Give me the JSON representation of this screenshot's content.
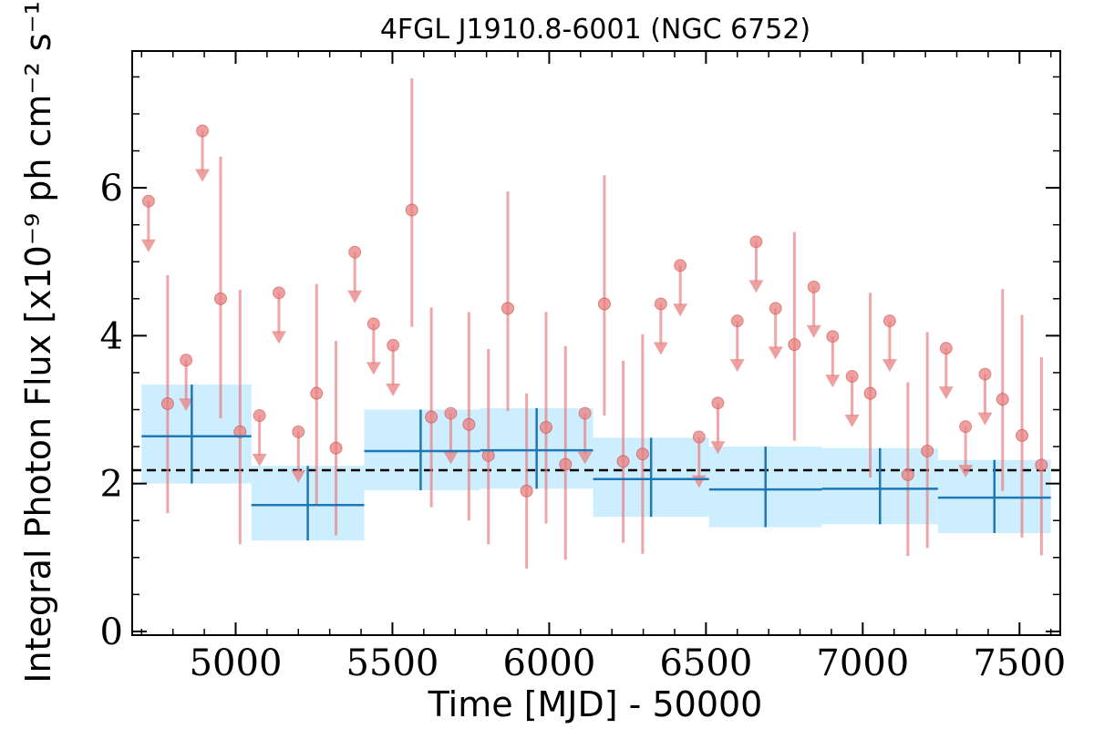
{
  "chart_data": {
    "type": "scatter",
    "title": "4FGL J1910.8-6001 (NGC 6752)",
    "xlabel": "Time [MJD] - 50000",
    "ylabel": "Integral Photon Flux [x10⁻⁹ ph cm⁻² s⁻¹]",
    "xlim": [
      4670,
      7630
    ],
    "ylim": [
      -0.05,
      7.85
    ],
    "xticks": [
      5000,
      5500,
      6000,
      6500,
      7000,
      7500
    ],
    "yticks": [
      0,
      2,
      4,
      6
    ],
    "grid": false,
    "reference_line": 2.18,
    "colors": {
      "points": "#e88080",
      "points_edge": "#cc4444",
      "bins": "#1f77b4",
      "band": "#cdeeff",
      "reference": "#000000"
    },
    "detections": [
      {
        "x": 4783,
        "y": 3.08,
        "ylo": 1.6,
        "yhi": 4.82
      },
      {
        "x": 4952,
        "y": 4.5,
        "ylo": 2.88,
        "yhi": 6.42
      },
      {
        "x": 5014,
        "y": 2.7,
        "ylo": 1.18,
        "yhi": 4.62
      },
      {
        "x": 5258,
        "y": 3.22,
        "ylo": 1.72,
        "yhi": 4.7
      },
      {
        "x": 5320,
        "y": 2.48,
        "ylo": 1.3,
        "yhi": 3.93
      },
      {
        "x": 5562,
        "y": 5.7,
        "ylo": 4.12,
        "yhi": 7.48
      },
      {
        "x": 5624,
        "y": 2.9,
        "ylo": 1.68,
        "yhi": 4.38
      },
      {
        "x": 5744,
        "y": 2.8,
        "ylo": 1.5,
        "yhi": 4.32
      },
      {
        "x": 5806,
        "y": 2.38,
        "ylo": 1.18,
        "yhi": 3.82
      },
      {
        "x": 5868,
        "y": 4.37,
        "ylo": 2.98,
        "yhi": 5.95
      },
      {
        "x": 5928,
        "y": 1.9,
        "ylo": 0.85,
        "yhi": 3.22
      },
      {
        "x": 5990,
        "y": 2.76,
        "ylo": 1.46,
        "yhi": 4.32
      },
      {
        "x": 6052,
        "y": 2.26,
        "ylo": 0.97,
        "yhi": 3.86
      },
      {
        "x": 6176,
        "y": 4.43,
        "ylo": 2.92,
        "yhi": 6.17
      },
      {
        "x": 6236,
        "y": 2.3,
        "ylo": 1.2,
        "yhi": 3.66
      },
      {
        "x": 6298,
        "y": 2.4,
        "ylo": 1.05,
        "yhi": 4.02
      },
      {
        "x": 6782,
        "y": 3.88,
        "ylo": 2.58,
        "yhi": 5.4
      },
      {
        "x": 7024,
        "y": 3.22,
        "ylo": 2.08,
        "yhi": 4.58
      },
      {
        "x": 7144,
        "y": 2.12,
        "ylo": 1.02,
        "yhi": 3.37
      },
      {
        "x": 7206,
        "y": 2.44,
        "ylo": 1.13,
        "yhi": 4.05
      },
      {
        "x": 7446,
        "y": 3.14,
        "ylo": 1.9,
        "yhi": 4.63
      },
      {
        "x": 7508,
        "y": 2.65,
        "ylo": 1.27,
        "yhi": 4.28
      },
      {
        "x": 7570,
        "y": 2.25,
        "ylo": 1.03,
        "yhi": 3.71
      }
    ],
    "upper_limits": [
      {
        "x": 4722,
        "y": 5.82
      },
      {
        "x": 4842,
        "y": 3.67
      },
      {
        "x": 4894,
        "y": 6.77
      },
      {
        "x": 5076,
        "y": 2.92
      },
      {
        "x": 5138,
        "y": 4.58
      },
      {
        "x": 5200,
        "y": 2.7
      },
      {
        "x": 5380,
        "y": 5.13
      },
      {
        "x": 5440,
        "y": 4.16
      },
      {
        "x": 5502,
        "y": 3.87
      },
      {
        "x": 5686,
        "y": 2.95
      },
      {
        "x": 6114,
        "y": 2.95
      },
      {
        "x": 6356,
        "y": 4.43
      },
      {
        "x": 6418,
        "y": 4.95
      },
      {
        "x": 6478,
        "y": 2.63
      },
      {
        "x": 6538,
        "y": 3.09
      },
      {
        "x": 6600,
        "y": 4.2
      },
      {
        "x": 6660,
        "y": 5.27
      },
      {
        "x": 6722,
        "y": 4.37
      },
      {
        "x": 6844,
        "y": 4.66
      },
      {
        "x": 6904,
        "y": 3.99
      },
      {
        "x": 6966,
        "y": 3.45
      },
      {
        "x": 7086,
        "y": 4.2
      },
      {
        "x": 7266,
        "y": 3.83
      },
      {
        "x": 7328,
        "y": 2.77
      },
      {
        "x": 7390,
        "y": 3.48
      }
    ],
    "binned": [
      {
        "x0": 4700,
        "x1": 5050,
        "xc": 4860,
        "y": 2.64,
        "ylo": 2.0,
        "yhi": 3.34
      },
      {
        "x0": 5050,
        "x1": 5410,
        "xc": 5230,
        "y": 1.71,
        "ylo": 1.23,
        "yhi": 2.24
      },
      {
        "x0": 5410,
        "x1": 5780,
        "xc": 5590,
        "y": 2.44,
        "ylo": 1.91,
        "yhi": 3.0
      },
      {
        "x0": 5780,
        "x1": 6140,
        "xc": 5960,
        "y": 2.45,
        "ylo": 1.93,
        "yhi": 3.02
      },
      {
        "x0": 6140,
        "x1": 6510,
        "xc": 6325,
        "y": 2.06,
        "ylo": 1.55,
        "yhi": 2.62
      },
      {
        "x0": 6510,
        "x1": 6870,
        "xc": 6690,
        "y": 1.92,
        "ylo": 1.41,
        "yhi": 2.5
      },
      {
        "x0": 6870,
        "x1": 7240,
        "xc": 7055,
        "y": 1.93,
        "ylo": 1.45,
        "yhi": 2.48
      },
      {
        "x0": 7240,
        "x1": 7600,
        "xc": 7420,
        "y": 1.81,
        "ylo": 1.33,
        "yhi": 2.32
      }
    ]
  }
}
